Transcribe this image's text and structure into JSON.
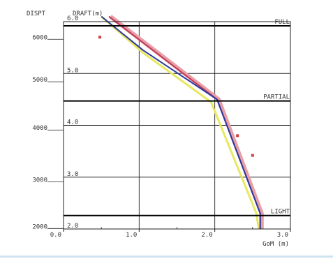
{
  "chart_data": {
    "type": "line",
    "labels": {
      "displacement": "DISPT",
      "draft": "DRAFT(m)",
      "gom": "GoM (m)"
    },
    "x_axis": {
      "range": [
        0.0,
        3.0
      ],
      "ticks": [
        "0.0",
        "1.0",
        "2.0",
        "3.0"
      ]
    },
    "draft_axis": {
      "range": [
        2.0,
        6.0
      ],
      "ticks": [
        "2.0",
        "3.0",
        "4.0",
        "5.0",
        "6.0"
      ]
    },
    "displacement_axis": {
      "ticks": [
        {
          "label": "2000",
          "draft": 2.05
        },
        {
          "label": "3000",
          "draft": 2.95
        },
        {
          "label": "4000",
          "draft": 3.95
        },
        {
          "label": "5000",
          "draft": 4.88
        },
        {
          "label": "6000",
          "draft": 5.7
        }
      ]
    },
    "reference_lines": [
      {
        "label": "FULL",
        "draft": 5.92
      },
      {
        "label": "PARTIAL",
        "draft": 4.47
      },
      {
        "label": "LIGHT",
        "draft": 2.26
      }
    ],
    "series": [
      {
        "color": "#e8e860",
        "points": [
          [
            0.5,
            6.1
          ],
          [
            1.05,
            5.4
          ],
          [
            1.95,
            4.45
          ],
          [
            2.55,
            2.3
          ],
          [
            2.58,
            2.0
          ]
        ]
      },
      {
        "color": "#e8a0a8",
        "points": [
          [
            0.62,
            6.1
          ],
          [
            2.05,
            4.5
          ],
          [
            2.62,
            2.3
          ],
          [
            2.62,
            2.0
          ]
        ]
      },
      {
        "color": "#c03a5a",
        "points": [
          [
            0.6,
            6.1
          ],
          [
            2.03,
            4.5
          ],
          [
            2.6,
            2.3
          ],
          [
            2.6,
            2.0
          ]
        ]
      },
      {
        "color": "#2a3a9a",
        "points": [
          [
            0.5,
            6.1
          ],
          [
            1.05,
            5.45
          ],
          [
            2.03,
            4.5
          ],
          [
            2.6,
            2.3
          ],
          [
            2.6,
            2.0
          ]
        ]
      }
    ],
    "markers": {
      "color": "#d04040",
      "points": [
        [
          0.48,
          5.7
        ],
        [
          2.3,
          3.8
        ],
        [
          2.5,
          3.42
        ]
      ]
    },
    "grid": true
  }
}
